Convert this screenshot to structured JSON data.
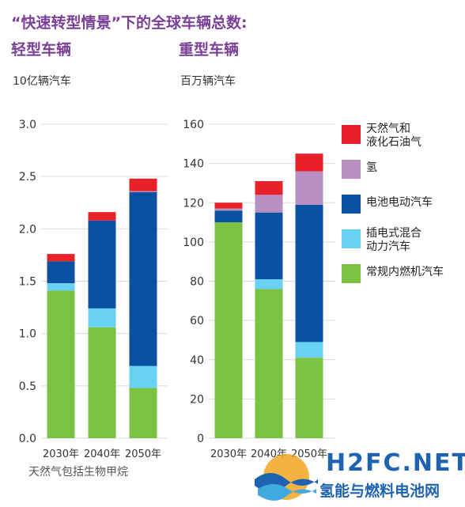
{
  "title": "“快速转型情景”下的全球车辆总数:",
  "footnote": "天然气包括生物甲烷",
  "watermark": {
    "text": "H2FC.NET",
    "subtext": "氢能与燃料电池网"
  },
  "colors": {
    "cng_lpg": "#E8202A",
    "hydrogen": "#B98FC4",
    "bev": "#0B51A1",
    "phev": "#69D2F3",
    "ice": "#7BC142",
    "title": "#7B3F97"
  },
  "legend": [
    {
      "key": "cng_lpg",
      "label": "天然气和\n液化石油气",
      "color": "#E8202A"
    },
    {
      "key": "hydrogen",
      "label": "氢",
      "color": "#B98FC4"
    },
    {
      "key": "bev",
      "label": "电池电动汽车",
      "color": "#0B51A1"
    },
    {
      "key": "phev",
      "label": "插电式混合\n动力汽车",
      "color": "#69D2F3"
    },
    {
      "key": "ice",
      "label": "常规内燃机汽车",
      "color": "#7BC142"
    }
  ],
  "chart_data": [
    {
      "type": "bar",
      "stacked": true,
      "title": "轻型车辆",
      "ylabel": "10亿辆汽车",
      "categories": [
        "2030年",
        "2040年",
        "2050年"
      ],
      "ylim": [
        0,
        3.0
      ],
      "yticks": [
        "0.0",
        "0.5",
        "1.0",
        "1.5",
        "2.0",
        "2.5",
        "3.0"
      ],
      "grid": true,
      "series": [
        {
          "name": "常规内燃机汽车",
          "key": "ice",
          "values": [
            1.41,
            1.06,
            0.48
          ]
        },
        {
          "name": "插电式混合动力汽车",
          "key": "phev",
          "values": [
            0.07,
            0.18,
            0.21
          ]
        },
        {
          "name": "电池电动汽车",
          "key": "bev",
          "values": [
            0.21,
            0.84,
            1.66
          ]
        },
        {
          "name": "氢",
          "key": "hydrogen",
          "values": [
            0.0,
            0.0,
            0.01
          ]
        },
        {
          "name": "天然气和液化石油气",
          "key": "cng_lpg",
          "values": [
            0.07,
            0.08,
            0.12
          ]
        }
      ]
    },
    {
      "type": "bar",
      "stacked": true,
      "title": "重型车辆",
      "ylabel": "百万辆汽车",
      "categories": [
        "2030年",
        "2040年",
        "2050年"
      ],
      "ylim": [
        0,
        160
      ],
      "yticks": [
        "0",
        "20",
        "40",
        "60",
        "80",
        "100",
        "120",
        "140",
        "160"
      ],
      "grid": true,
      "series": [
        {
          "name": "常规内燃机汽车",
          "key": "ice",
          "values": [
            110,
            76,
            41
          ]
        },
        {
          "name": "插电式混合动力汽车",
          "key": "phev",
          "values": [
            0,
            5,
            8
          ]
        },
        {
          "name": "电池电动汽车",
          "key": "bev",
          "values": [
            6,
            34,
            70
          ]
        },
        {
          "name": "氢",
          "key": "hydrogen",
          "values": [
            1,
            9,
            17
          ]
        },
        {
          "name": "天然气和液化石油气",
          "key": "cng_lpg",
          "values": [
            3,
            7,
            9
          ]
        }
      ]
    }
  ]
}
